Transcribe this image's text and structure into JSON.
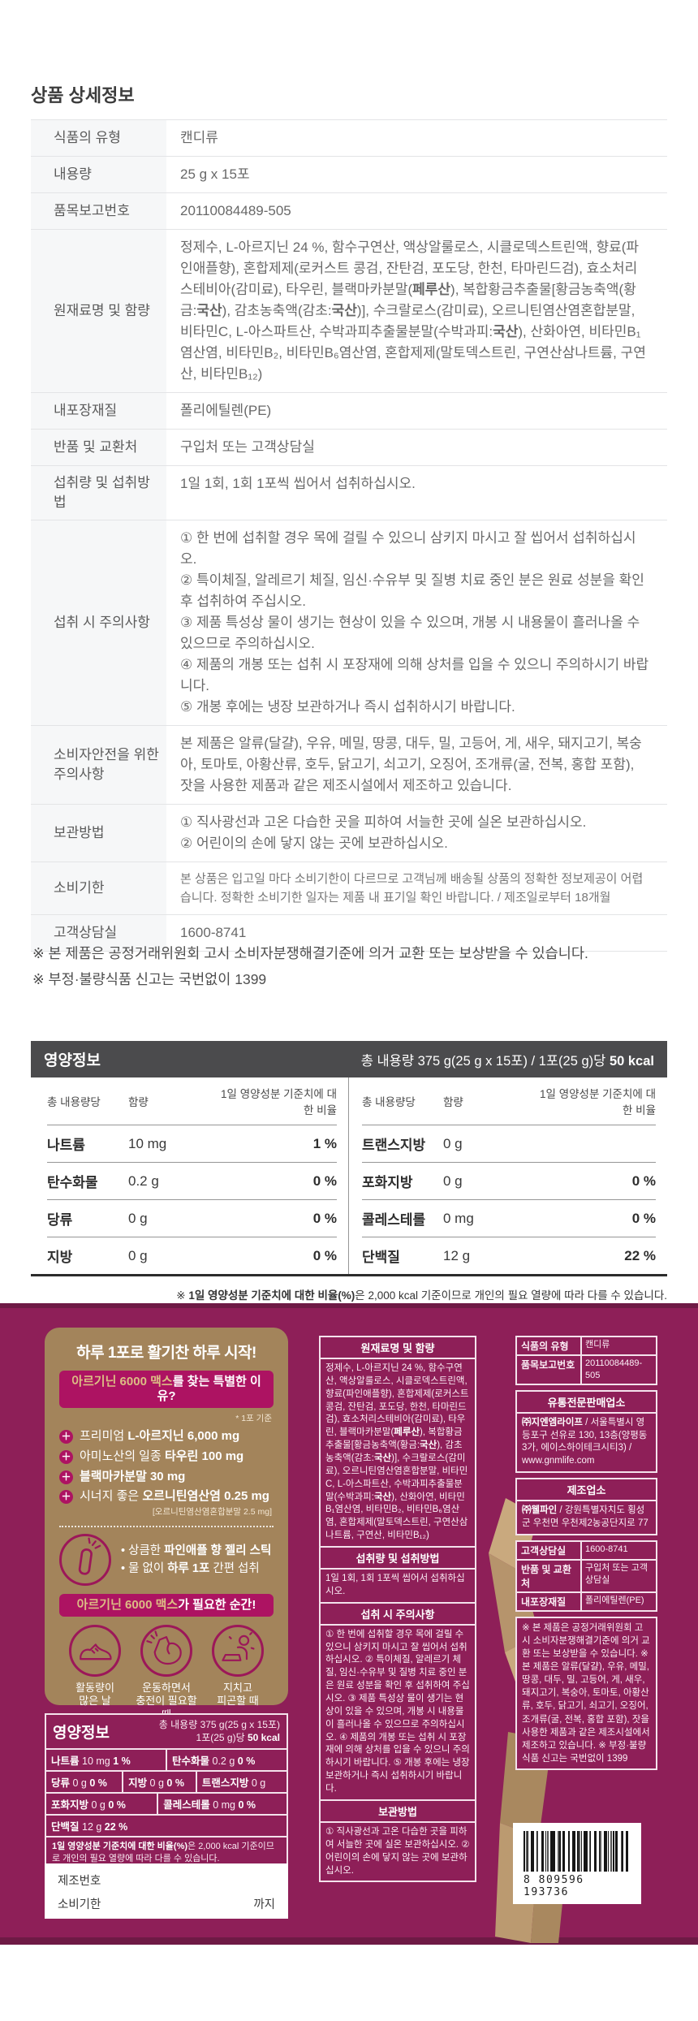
{
  "colors": {
    "package_bg": "#8e1f58",
    "panel_tan": "#a3845b",
    "badge_magenta": "#ad1362",
    "gold_text": "#dcbd84",
    "nutrition_bar": "#4b4b4d"
  },
  "page": {
    "title": "상품 상세정보"
  },
  "info_table": {
    "rows": [
      {
        "label": "식품의 유형",
        "value": "캔디류"
      },
      {
        "label": "내용량",
        "value": "25 g x 15포"
      },
      {
        "label": "품목보고번호",
        "value": "20110084489-505"
      },
      {
        "label": "원재료명 및 함량",
        "value": "정제수, L-아르지닌 24 %, 함수구연산, 액상알룰로스, 시클로덱스트린액, 향료(파인애플향), 혼합제제(로커스트 콩검, 잔탄검, 포도당, 한천, 타마린드검), 효소처리스테비아(감미료), 타우린, 블랙마카분말(**페루산**), 복합황금추출물[황금농축액(황금:**국산**), 감초농축액(감초:**국산**)], 수크랄로스(감미료), 오르니틴염산염혼합분말, 비타민C, L-아스파트산, 수박과피추출물분말(수박과피:**국산**), 산화아연, 비타민B₁염산염, 비타민B₂, 비타민B₆염산염, 혼합제제(말토덱스트린, 구연산삼나트륨, 구연산, 비타민B₁₂)"
      },
      {
        "label": "내포장재질",
        "value": "폴리에틸렌(PE)"
      },
      {
        "label": "반품 및 교환처",
        "value": "구입처 또는 고객상담실"
      },
      {
        "label": "섭취량 및 섭취방법",
        "value": "1일 1회, 1회 1포씩 씹어서 섭취하십시오."
      },
      {
        "label": "섭취 시 주의사항",
        "value": "① 한 번에 섭취할 경우 목에 걸릴 수 있으니 삼키지 마시고 잘 씹어서 섭취하십시오.\n② 특이체질, 알레르기 체질, 임신·수유부 및 질병 치료 중인 분은 원료 성분을 확인 후 섭취하여 주십시오.\n③ 제품 특성상 물이 생기는 현상이 있을 수 있으며, 개봉 시 내용물이 흘러나올 수 있으므로 주의하십시오.\n④ 제품의 개봉 또는 섭취 시 포장재에 의해 상처를 입을 수 있으니 주의하시기 바랍니다.\n⑤ 개봉 후에는 냉장 보관하거나 즉시 섭취하시기 바랍니다."
      },
      {
        "label": "소비자안전을 위한 주의사항",
        "value": "본 제품은 알류(달걀), 우유, 메밀, 땅콩, 대두, 밀, 고등어, 게, 새우, 돼지고기, 복숭아, 토마토, 아황산류, 호두, 닭고기, 쇠고기, 오징어, 조개류(굴, 전복, 홍합 포함), 잣을 사용한 제품과 같은 제조시설에서 제조하고 있습니다."
      },
      {
        "label": "보관방법",
        "value": "① 직사광선과 고온 다습한 곳을 피하여 서늘한 곳에 실온 보관하십시오.\n② 어린이의 손에 닿지 않는 곳에 보관하십시오."
      },
      {
        "label": "소비기한",
        "value": "본 상품은 입고일 마다 소비기한이 다르므로 고객님께 배송될 상품의 정확한 정보제공이 어렵습니다. 정확한 소비기한 일자는 제품 내 표기일 확인 바랍니다. / 제조일로부터 18개월"
      },
      {
        "label": "고객상담실",
        "value": "1600-8741"
      }
    ]
  },
  "notices": [
    "※ 본 제품은 공정거래위원회 고시 소비자분쟁해결기준에 의거 교환 또는 보상받을 수 있습니다.",
    "※ 부정·불량식품 신고는 국번없이 1399"
  ],
  "nutrition": {
    "title": "영양정보",
    "serving": "총 내용량 375 g(25 g x 15포) / 1포(25 g)당  **50 kcal**",
    "col_headers": {
      "per": "총 내용량당",
      "amount": "함량",
      "ratio": "1일 영양성분 기준치에 대한 비율"
    },
    "left_rows": [
      {
        "name": "나트륨",
        "amount": "10 mg",
        "ratio": "1 %"
      },
      {
        "name": "탄수화물",
        "amount": "0.2 g",
        "ratio": "0 %"
      },
      {
        "name": "당류",
        "amount": "0 g",
        "ratio": "0 %"
      },
      {
        "name": "지방",
        "amount": "0 g",
        "ratio": "0 %"
      }
    ],
    "right_rows": [
      {
        "name": "트랜스지방",
        "amount": "0 g",
        "ratio": ""
      },
      {
        "name": "포화지방",
        "amount": "0 g",
        "ratio": "0 %"
      },
      {
        "name": "콜레스테롤",
        "amount": "0 mg",
        "ratio": "0 %"
      },
      {
        "name": "단백질",
        "amount": "12 g",
        "ratio": "22 %"
      }
    ],
    "footnote": "※ **1일 영양성분 기준치에 대한 비율(%)**은 2,000 kcal 기준이므로 개인의 필요 열량에 따라 다를 수 있습니다."
  },
  "package": {
    "promo": {
      "headline": "하루 1포로 활기찬 하루 시작!",
      "reason_badge": {
        "highlight": "아르기닌 6000 맥스",
        "rest": "를 찾는 특별한 이유?"
      },
      "basis_note": "* 1포 기준",
      "features": [
        "프리미엄 **L-아르지닌 6,000 mg**",
        "아미노산의 일종 **타우린 100 mg**",
        "**블랙마카분말 30 mg**",
        "시너지 좋은 **오르니틴염산염 0.25 mg**"
      ],
      "feature_sub": "[오르니틴염산염혼합분말 2.5 mg]",
      "stick_icon": "jelly-stick-icon",
      "stick_points": [
        "상큼한 **파인애플 향 젤리 스틱**",
        "물 없이 **하루 1포** 간편 섭취"
      ],
      "moment_badge": {
        "highlight": "아르기닌 6000 맥스",
        "rest": "가 필요한 순간!"
      },
      "moments": [
        {
          "icon": "running-shoe-icon",
          "caption": "활동량이\n많은 날"
        },
        {
          "icon": "muscle-icon",
          "caption": "운동하면서\n충전이 필요할 때"
        },
        {
          "icon": "tired-person-icon",
          "caption": "지치고\n피곤할 때"
        }
      ]
    },
    "ingredients": {
      "title": "원재료명 및 함량",
      "body": "정제수, L-아르지닌 24 %, 함수구연산, 액상알룰로스, 시클로덱스트린액, 향료(파인애플향), 혼합제제(로커스트 콩검, 잔탄검, 포도당, 한천, 타마린드검), 효소처리스테비아(감미료), 타우린, 블랙마카분말(**페루산**), 복합황금추출물[황금농축액(황금:**국산**), 감초농축액(감초:**국산**)], 수크랄로스(감미료), 오르니틴염산염혼합분말, 비타민C, L-아스파트산, 수박과피추출물분말(수박과피:**국산**), 산화아연, 비타민B₁염산염, 비타민B₂, 비타민B₆염산염, 혼합제제(말토덱스트린, 구연산삼나트륨, 구연산, 비타민B₁₂)"
    },
    "intake": {
      "title": "섭취량 및 섭취방법",
      "body": "1일 1회, 1회 1포씩 씹어서 섭취하십시오."
    },
    "caution": {
      "title": "섭취 시 주의사항",
      "body": "① 한 번에 섭취할 경우 목에 걸릴 수 있으니 삼키지 마시고 잘 씹어서 섭취하십시오. ② 특이체질, 알레르기 체질, 임신·수유부 및 질병 치료 중인 분은 원료 성분을 확인 후 섭취하여 주십시오. ③ 제품 특성상 물이 생기는 현상이 있을 수 있으며, 개봉 시 내용물이 흘러나올 수 있으므로 주의하십시오. ④ 제품의 개봉 또는 섭취 시 포장재에 의해 상처를 입을 수 있으니 주의하시기 바랍니다. ⑤ 개봉 후에는 냉장 보관하거나 즉시 섭취하시기 바랍니다."
    },
    "storage": {
      "title": "보관방법",
      "body": "① 직사광선과 고온 다습한 곳을 피하여 서늘한 곳에 실온 보관하십시오. ② 어린이의 손에 닿지 않는 곳에 보관하십시오."
    },
    "right": {
      "rows1": [
        {
          "label": "식품의 유형",
          "value": "캔디류"
        },
        {
          "label": "품목보고번호",
          "value": "20110084489-505"
        }
      ],
      "seller": {
        "title": "유통전문판매업소",
        "body": "**㈜지엔엠라이프** / 서울특별시 영등포구 선유로 130, 13층(양평동3가, 에이스하이테크시티3) / www.gnmlife.com"
      },
      "maker": {
        "title": "제조업소",
        "body": "**㈜웰파인** / 강원특별자치도 횡성군 우천면 우천제2농공단지로 77"
      },
      "rows2": [
        {
          "label": "고객상담실",
          "value": "1600-8741"
        },
        {
          "label": "반품 및 교환처",
          "value": "구입처 또는 고객 상담실"
        },
        {
          "label": "내포장재질",
          "value": "폴리에틸렌(PE)"
        }
      ],
      "notes": "※ 본 제품은 공정거래위원회 고시 소비자분쟁해결기준에 의거 교환 또는 보상받을 수 있습니다. ※ 본 제품은 알류(달걀), 우유, 메밀, 땅콩, 대두, 밀, 고등어, 게, 새우, 돼지고기, 복숭아, 토마토, 아황산류, 호두, 닭고기, 쇠고기, 오징어, 조개류(굴, 전복, 홍합 포함), 잣을 사용한 제품과 같은 제조시설에서 제조하고 있습니다. ※ 부정·불량식품 신고는 국번없이 1399",
      "barcode_digits": "8 809596 193736"
    },
    "nutrition_panel": {
      "title": "영양정보",
      "serving": "총 내용량 375 g(25 g x 15포)\n1포(25 g)당 **50 kcal**",
      "row1": [
        "**나트륨** 10 mg **1 %**",
        "**탄수화물** 0.2 g **0 %**"
      ],
      "row2": [
        "**당류** 0 g **0 %**",
        "**지방** 0 g **0 %**",
        "**트랜스지방** 0 g"
      ],
      "row3": [
        "**포화지방** 0 g **0 %**",
        "**콜레스테롤** 0 mg **0 %**"
      ],
      "row4": [
        "**단백질** 12 g **22 %**"
      ],
      "note": "**1일 영양성분 기준치에 대한 비율(%)**은 2,000 kcal 기준이므로 개인의 필요 열량에 따라 다를 수 있습니다."
    },
    "mfg": {
      "line1": "제조번호",
      "line2": "소비기한",
      "suffix": "까지"
    }
  }
}
